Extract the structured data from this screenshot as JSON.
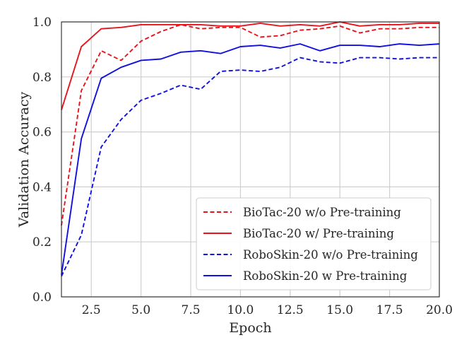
{
  "chart_data": {
    "type": "line",
    "title": "",
    "xlabel": "Epoch",
    "ylabel": "Validation Accuracy",
    "xlim": [
      1,
      20
    ],
    "ylim": [
      0.0,
      1.0
    ],
    "xticks": [
      2.5,
      5.0,
      7.5,
      10.0,
      12.5,
      15.0,
      17.5,
      20.0
    ],
    "xtick_labels": [
      "2.5",
      "5.0",
      "7.5",
      "10.0",
      "12.5",
      "15.0",
      "17.5",
      "20.0"
    ],
    "yticks": [
      0.0,
      0.2,
      0.4,
      0.6,
      0.8,
      1.0
    ],
    "ytick_labels": [
      "0.0",
      "0.2",
      "0.4",
      "0.6",
      "0.8",
      "1.0"
    ],
    "grid": true,
    "legend_position": "lower-right",
    "x": [
      1,
      2,
      3,
      4,
      5,
      6,
      7,
      8,
      9,
      10,
      11,
      12,
      13,
      14,
      15,
      16,
      17,
      18,
      19,
      20
    ],
    "series": [
      {
        "name": "BioTac-20 w/o Pre-training",
        "color": "#e8141c",
        "style": "dashed",
        "values": [
          0.26,
          0.75,
          0.895,
          0.86,
          0.93,
          0.965,
          0.99,
          0.975,
          0.98,
          0.98,
          0.945,
          0.95,
          0.97,
          0.975,
          0.985,
          0.96,
          0.975,
          0.975,
          0.98,
          0.98
        ]
      },
      {
        "name": "BioTac-20 w/ Pre-training",
        "color": "#e8141c",
        "style": "solid",
        "values": [
          0.68,
          0.91,
          0.975,
          0.98,
          0.99,
          0.99,
          0.99,
          0.99,
          0.985,
          0.985,
          0.995,
          0.985,
          0.99,
          0.985,
          1.0,
          0.985,
          0.99,
          0.99,
          0.995,
          0.995
        ]
      },
      {
        "name": "RoboSkin-20 w/o Pre-training",
        "color": "#1010e0",
        "style": "dashed",
        "values": [
          0.075,
          0.225,
          0.545,
          0.645,
          0.715,
          0.74,
          0.77,
          0.755,
          0.82,
          0.825,
          0.82,
          0.835,
          0.87,
          0.855,
          0.85,
          0.87,
          0.87,
          0.865,
          0.87,
          0.87
        ]
      },
      {
        "name": "RoboSkin-20 w Pre-training",
        "color": "#1010e0",
        "style": "solid",
        "values": [
          0.08,
          0.575,
          0.795,
          0.835,
          0.86,
          0.865,
          0.89,
          0.895,
          0.885,
          0.91,
          0.915,
          0.905,
          0.92,
          0.895,
          0.915,
          0.915,
          0.91,
          0.92,
          0.915,
          0.92
        ]
      }
    ]
  }
}
